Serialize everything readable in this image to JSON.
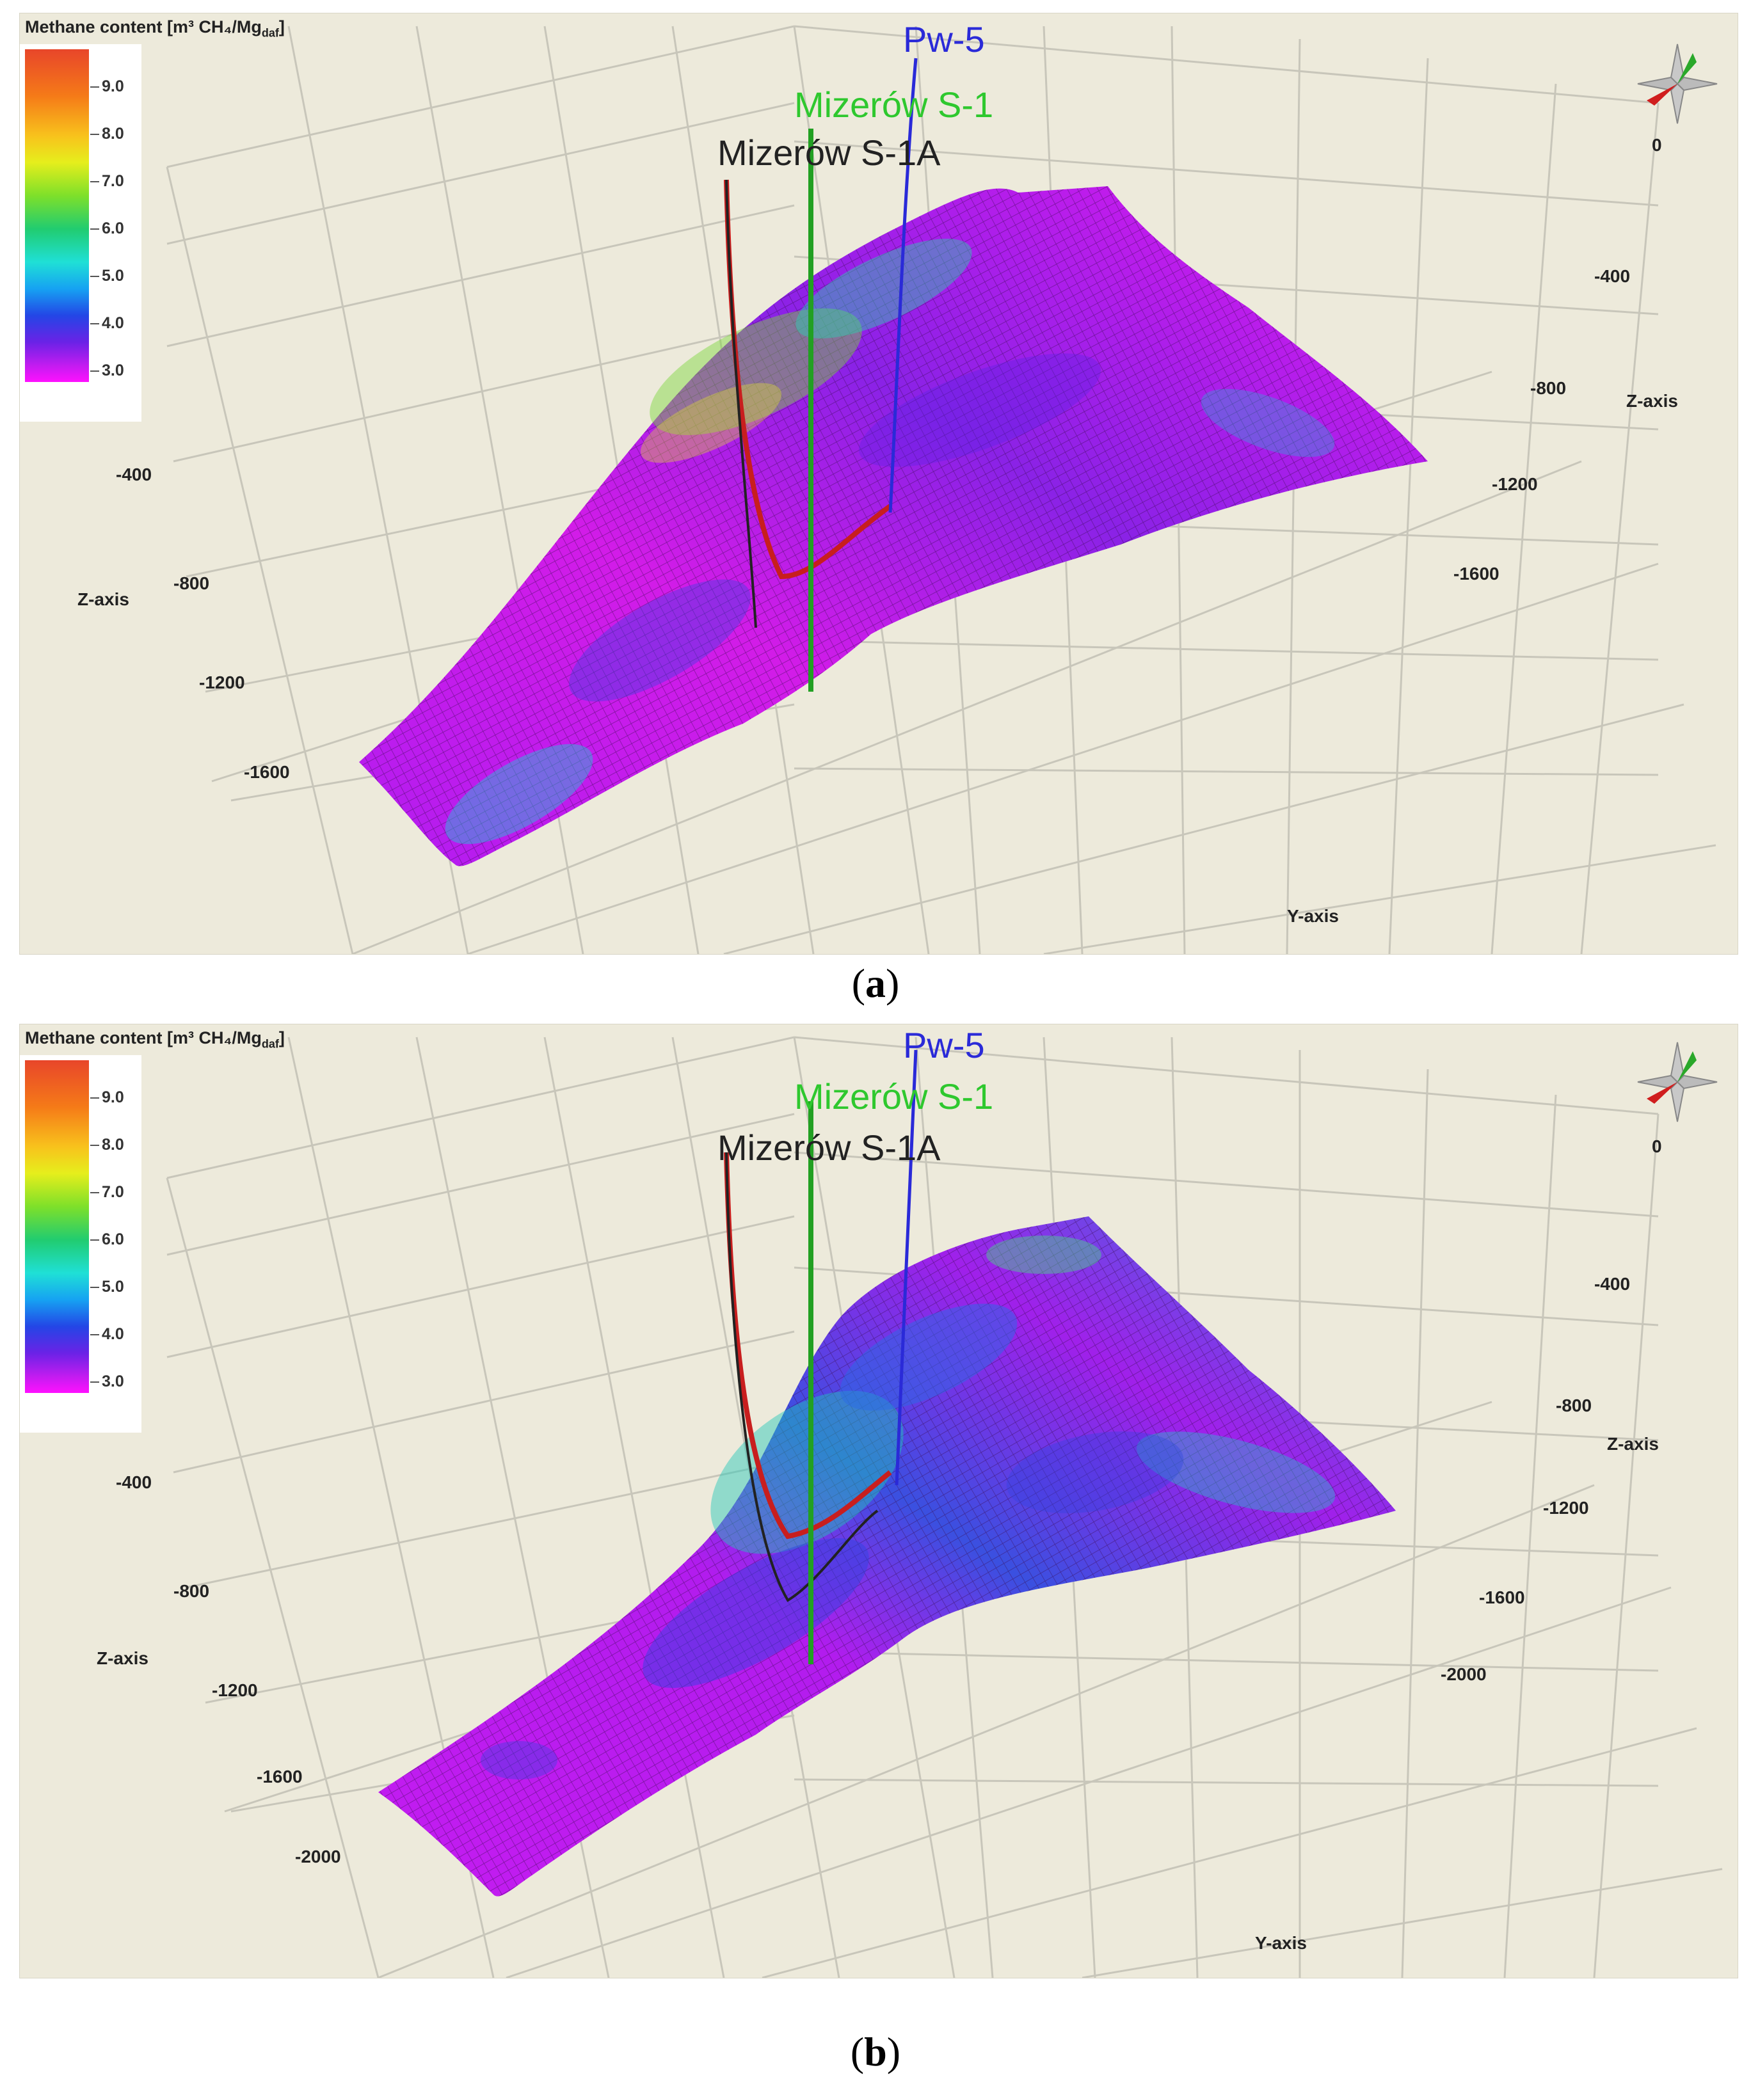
{
  "legend": {
    "title": "Methane content [m³ CH₄/Mg",
    "title_sub": "daf",
    "title_end": "]",
    "ticks": [
      "9.0",
      "8.0",
      "7.0",
      "6.0",
      "5.0",
      "4.0",
      "3.0"
    ]
  },
  "wells": {
    "pw5": "Pw-5",
    "mizerow_s1": "Mizerów S-1",
    "mizerow_s1a": "Mizerów S-1A"
  },
  "colors": {
    "pw5": "#2a2ad8",
    "mizerow_s1": "#2ec82e",
    "mizerow_s1a": "#222222",
    "surface_low": "#c21cf0",
    "background": "#edeadb"
  },
  "chart_data": [
    {
      "type": "heatmap",
      "panel": "(a)",
      "caption_letter": "a",
      "surface": "3D structural surface coloured by methane content",
      "colorscale": {
        "min": 3.0,
        "max": 9.0
      },
      "axes": {
        "left_z_label": "Z-axis",
        "left_z_ticks": [
          "-400",
          "-800",
          "-1200",
          "-1600"
        ],
        "right_z_label": "Z-axis",
        "right_z_ticks": [
          "0",
          "-400",
          "-800",
          "-1200",
          "-1600"
        ],
        "y_label": "Y-axis"
      }
    },
    {
      "type": "heatmap",
      "panel": "(b)",
      "caption_letter": "b",
      "surface": "3D structural surface coloured by methane content",
      "colorscale": {
        "min": 3.0,
        "max": 9.0
      },
      "axes": {
        "left_z_label": "Z-axis",
        "left_z_ticks": [
          "-400",
          "-800",
          "-1200",
          "-1600",
          "-2000"
        ],
        "right_z_label": "Z-axis",
        "right_z_ticks": [
          "0",
          "-400",
          "-800",
          "-1200",
          "-1600",
          "-2000"
        ],
        "y_label": "Y-axis"
      }
    }
  ]
}
